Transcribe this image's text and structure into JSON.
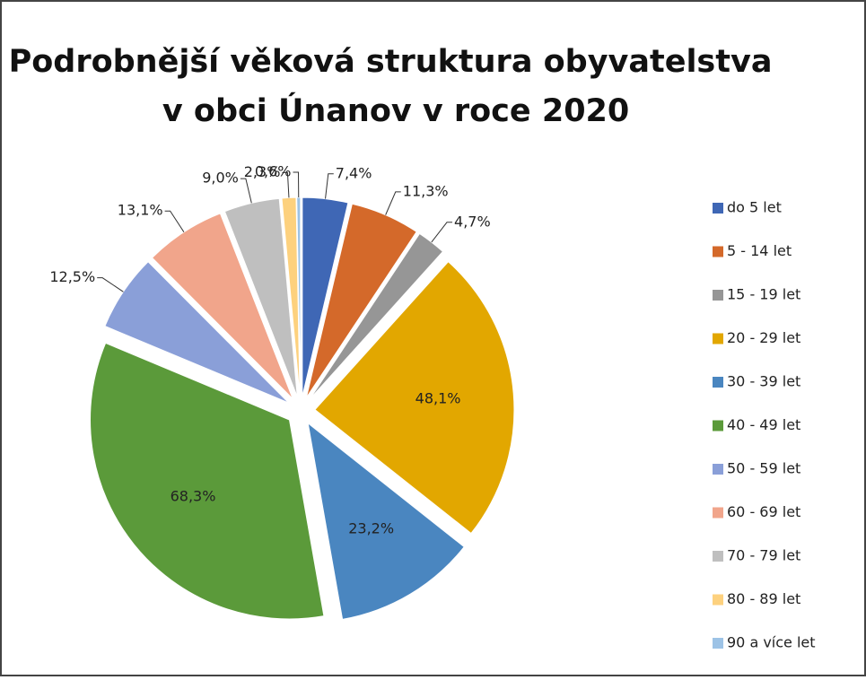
{
  "chart_data": {
    "type": "pie",
    "title": "Podrobnější věková struktura obyvatelstva v obci Únanov v roce 2020",
    "categories": [
      "do 5 let",
      "5 - 14 let",
      "15 - 19 let",
      "20 - 29 let",
      "30 - 39 let",
      "40 - 49 let",
      "50 - 59 let",
      "60 - 69 let",
      "70 - 79 let",
      "80 - 89 let",
      "90 a více let"
    ],
    "values": [
      7.4,
      11.3,
      4.7,
      48.1,
      23.2,
      68.3,
      12.5,
      13.1,
      9.0,
      2.3,
      0.6
    ],
    "value_labels": [
      "7,4%",
      "11,3%",
      "4,7%",
      "48,1%",
      "23,2%",
      "68,3%",
      "12,5%",
      "13,1%",
      "9,0%",
      "2,3%",
      "0,6%"
    ],
    "colors": [
      "#3f67b5",
      "#d4692a",
      "#969696",
      "#e2a700",
      "#4a86c0",
      "#5b9a3a",
      "#8a9fd8",
      "#f1a58b",
      "#bfbfbf",
      "#fdd17e",
      "#9dc3e6"
    ],
    "legend": "right"
  }
}
